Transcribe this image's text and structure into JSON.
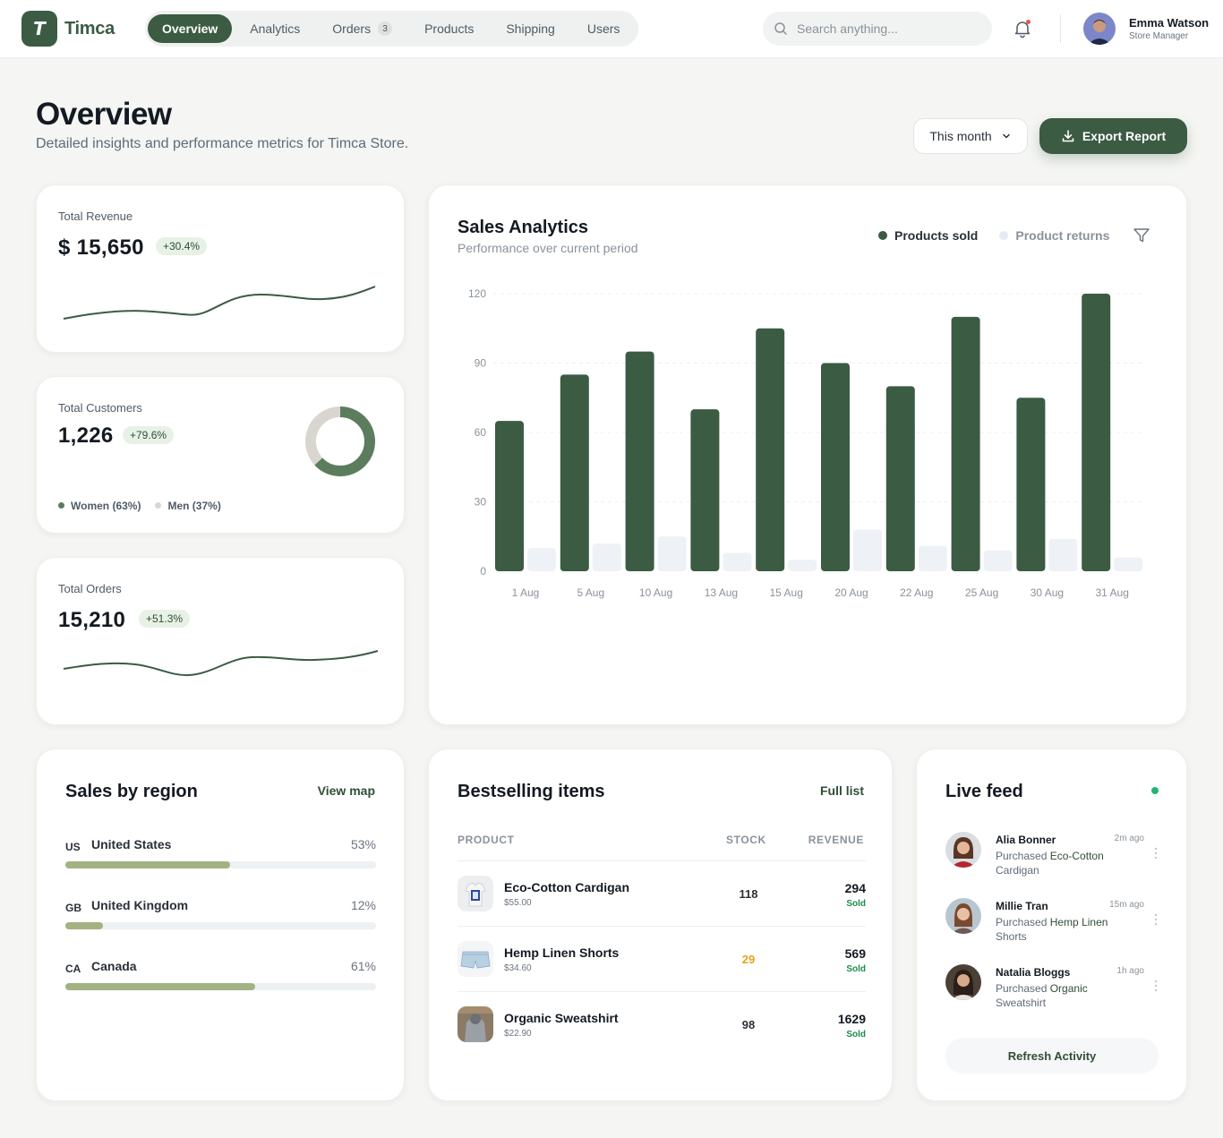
{
  "app": {
    "logo_letter": "T",
    "name": "Timca"
  },
  "nav": {
    "items": [
      {
        "label": "Overview",
        "active": true
      },
      {
        "label": "Analytics"
      },
      {
        "label": "Orders",
        "badge": "3"
      },
      {
        "label": "Products"
      },
      {
        "label": "Shipping"
      },
      {
        "label": "Users"
      }
    ]
  },
  "search": {
    "placeholder": "Search anything...",
    "value": ""
  },
  "user": {
    "name": "Emma Watson",
    "role": "Store Manager"
  },
  "header": {
    "title": "Overview",
    "subtitle": "Detailed insights and performance metrics for Timca Store.",
    "period_label": "This month",
    "export_label": "Export Report"
  },
  "stats": {
    "revenue": {
      "label": "Total Revenue",
      "value": "$ 15,650",
      "change": "+30.4%"
    },
    "customers": {
      "label": "Total Customers",
      "value": "1,226",
      "change": "+79.6%",
      "women_label": "Women (63%)",
      "men_label": "Men (37%)",
      "women_share": 0.63
    },
    "orders": {
      "label": "Total Orders",
      "value": "15,210",
      "change": "+51.3%"
    }
  },
  "sales_analytics": {
    "title": "Sales Analytics",
    "subtitle": "Performance over current period",
    "legend_sold": "Products sold",
    "legend_returns": "Product returns"
  },
  "chart_data": {
    "type": "bar",
    "categories": [
      "1 Aug",
      "5 Aug",
      "10 Aug",
      "13 Aug",
      "15 Aug",
      "20 Aug",
      "22 Aug",
      "25 Aug",
      "30 Aug",
      "31 Aug"
    ],
    "series": [
      {
        "name": "Products sold",
        "values": [
          65,
          85,
          95,
          70,
          105,
          90,
          80,
          110,
          75,
          120
        ]
      },
      {
        "name": "Product returns",
        "values": [
          10,
          12,
          15,
          8,
          5,
          18,
          11,
          9,
          14,
          6
        ]
      }
    ],
    "yticks": [
      0,
      30,
      60,
      90,
      120
    ],
    "ylim": [
      0,
      120
    ],
    "grid": true,
    "legend": "top-right",
    "colors": {
      "sold": "#3b5b43",
      "returns": "#eef2f6"
    }
  },
  "regions": {
    "title": "Sales by region",
    "link": "View map",
    "items": [
      {
        "code": "US",
        "name": "United States",
        "pct_label": "53%",
        "fill": 0.53
      },
      {
        "code": "GB",
        "name": "United Kingdom",
        "pct_label": "12%",
        "fill": 0.12
      },
      {
        "code": "CA",
        "name": "Canada",
        "pct_label": "61%",
        "fill": 0.61
      }
    ]
  },
  "bestselling": {
    "title": "Bestselling items",
    "link": "Full list",
    "columns": {
      "product": "PRODUCT",
      "stock": "STOCK",
      "revenue": "REVENUE"
    },
    "items": [
      {
        "name": "Eco-Cotton Cardigan",
        "price": "$55.00",
        "stock": "118",
        "revenue": "294",
        "sold": "Sold"
      },
      {
        "name": "Hemp Linen Shorts",
        "price": "$34.60",
        "stock": "29",
        "revenue": "569",
        "sold": "Sold"
      },
      {
        "name": "Organic Sweatshirt",
        "price": "$22.90",
        "stock": "98",
        "revenue": "1629",
        "sold": "Sold"
      }
    ]
  },
  "feed": {
    "title": "Live feed",
    "refresh_label": "Refresh Activity",
    "items": [
      {
        "name": "Alia Bonner",
        "time": "2m ago",
        "action": "Purchased",
        "product": "Eco-Cotton",
        "product_rest": "Cardigan"
      },
      {
        "name": "Millie Tran",
        "time": "15m ago",
        "action": "Purchased",
        "product": "Hemp Linen",
        "product_rest": "Shorts"
      },
      {
        "name": "Natalia Bloggs",
        "time": "1h ago",
        "action": "Purchased",
        "product": "Organic",
        "product_rest": "Sweatshirt"
      }
    ]
  }
}
